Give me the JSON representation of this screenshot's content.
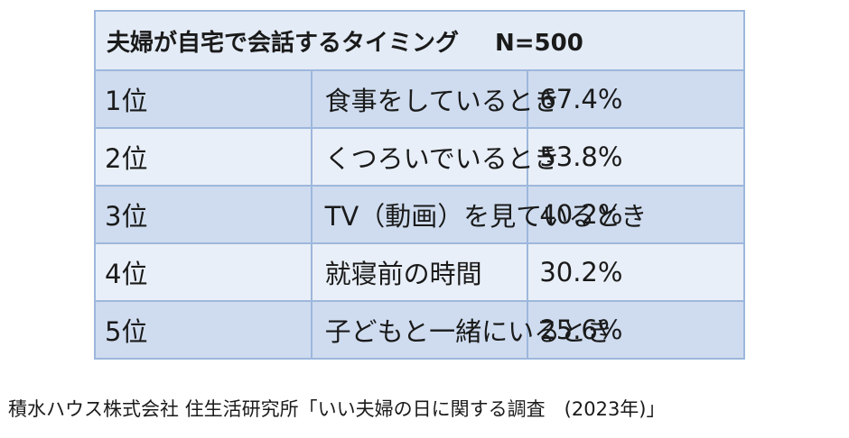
{
  "chart_data": {
    "type": "table",
    "title": "夫婦が自宅で会話するタイミング",
    "sample_size": "N=500",
    "rows": [
      {
        "rank": "1位",
        "item": "食事をしているとき",
        "percent": "67.4%",
        "value": 67.4
      },
      {
        "rank": "2位",
        "item": "くつろいでいるとき",
        "percent": "53.8%",
        "value": 53.8
      },
      {
        "rank": "3位",
        "item": "TV（動画）を見ているとき",
        "percent": "40.2%",
        "value": 40.2
      },
      {
        "rank": "4位",
        "item": "就寝前の時間",
        "percent": "30.2%",
        "value": 30.2
      },
      {
        "rank": "5位",
        "item": "子どもと一緒にいるとき",
        "percent": "25.6%",
        "value": 25.6
      }
    ]
  },
  "source": "積水ハウス株式会社 住生活研究所「いい夫婦の日に関する調査　(2023年)」",
  "colors": {
    "border": "#9db7dc",
    "header_bg": "#e3ebf6",
    "row_dark": "#cfdcef",
    "row_light": "#e9eff8"
  }
}
